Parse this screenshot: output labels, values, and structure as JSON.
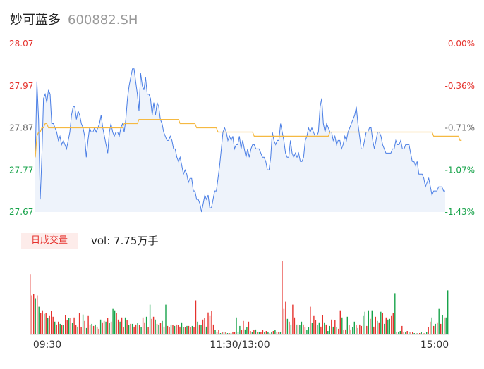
{
  "stock": {
    "name": "妙可蓝多",
    "code": "600882.SH"
  },
  "volume_panel": {
    "tab_label": "日成交量",
    "vol_label": "vol: 7.75万手"
  },
  "colors": {
    "price_line": "#4a7ee5",
    "avg_line": "#f5b942",
    "up": "#e5322d",
    "down": "#17a34a",
    "area": "#eef3fb"
  },
  "chart_data": [
    {
      "type": "line",
      "x_ticks": [
        "09:30",
        "11:30/13:00",
        "15:00"
      ],
      "y_ticks": [
        "28.07",
        "27.97",
        "27.87",
        "27.77",
        "27.67"
      ],
      "y_ticks_right": [
        "-0.00%",
        "-0.36%",
        "-0.71%",
        "-1.07%",
        "-1.43%"
      ],
      "ylim": [
        27.67,
        28.07
      ],
      "series": [
        {
          "values": [
            27.8,
            27.98,
            27.89,
            27.7,
            27.8,
            27.94,
            27.95,
            27.93,
            27.96,
            27.95,
            27.88,
            27.88,
            27.87,
            27.86,
            27.84,
            27.85,
            27.83,
            27.84,
            27.83,
            27.82,
            27.84,
            27.86,
            27.9,
            27.92,
            27.92,
            27.89,
            27.91,
            27.9,
            27.88,
            27.87,
            27.85,
            27.8,
            27.84,
            27.87,
            27.86,
            27.86,
            27.87,
            27.86,
            27.87,
            27.88,
            27.9,
            27.87,
            27.85,
            27.83,
            27.81,
            27.86,
            27.88,
            27.86,
            27.85,
            27.86,
            27.86,
            27.85,
            27.87,
            27.88,
            27.86,
            27.89,
            27.94,
            27.97,
            27.99,
            28.01,
            28.01,
            27.98,
            27.95,
            27.91,
            28.0,
            27.97,
            27.96,
            27.99,
            27.95,
            27.95,
            27.94,
            27.9,
            27.93,
            27.9,
            27.93,
            27.92,
            27.89,
            27.88,
            27.86,
            27.85,
            27.84,
            27.84,
            27.85,
            27.84,
            27.82,
            27.82,
            27.8,
            27.79,
            27.8,
            27.78,
            27.76,
            27.77,
            27.76,
            27.74,
            27.75,
            27.75,
            27.72,
            27.72,
            27.7,
            27.7,
            27.69,
            27.67,
            27.69,
            27.71,
            27.7,
            27.71,
            27.68,
            27.68,
            27.7,
            27.72,
            27.72,
            27.75,
            27.78,
            27.82,
            27.86,
            27.87,
            27.86,
            27.84,
            27.85,
            27.84,
            27.85,
            27.82,
            27.83,
            27.83,
            27.85,
            27.82,
            27.84,
            27.82,
            27.8,
            27.82,
            27.8,
            27.82,
            27.83,
            27.83,
            27.82,
            27.82,
            27.82,
            27.81,
            27.8,
            27.8,
            27.79,
            27.77,
            27.77,
            27.8,
            27.86,
            27.84,
            27.83,
            27.84,
            27.84,
            27.88,
            27.86,
            27.84,
            27.81,
            27.8,
            27.8,
            27.84,
            27.81,
            27.8,
            27.81,
            27.8,
            27.81,
            27.79,
            27.79,
            27.8,
            27.84,
            27.85,
            27.87,
            27.86,
            27.87,
            27.86,
            27.85,
            27.85,
            27.86,
            27.92,
            27.94,
            27.88,
            27.86,
            27.88,
            27.87,
            27.86,
            27.86,
            27.84,
            27.85,
            27.83,
            27.84,
            27.84,
            27.82,
            27.83,
            27.85,
            27.84,
            27.86,
            27.87,
            27.88,
            27.89,
            27.9,
            27.92,
            27.88,
            27.85,
            27.82,
            27.82,
            27.84,
            27.86,
            27.86,
            27.87,
            27.87,
            27.84,
            27.82,
            27.84,
            27.86,
            27.86,
            27.85,
            27.83,
            27.82,
            27.81,
            27.81,
            27.81,
            27.81,
            27.82,
            27.82,
            27.84,
            27.83,
            27.83,
            27.84,
            27.82,
            27.82,
            27.83,
            27.83,
            27.83,
            27.81,
            27.79,
            27.79,
            27.78,
            27.79,
            27.76,
            27.76,
            27.76,
            27.75,
            27.73,
            27.74,
            27.75,
            27.73,
            27.71,
            27.72,
            27.72,
            27.72,
            27.73,
            27.73,
            27.73,
            27.72,
            27.72
          ]
        },
        {
          "values": [
            27.8,
            27.85,
            27.86,
            27.86,
            27.87,
            27.87,
            27.88,
            27.88,
            27.87,
            27.87,
            27.87,
            27.87,
            27.87,
            27.87,
            27.87,
            27.87,
            27.87,
            27.87,
            27.87,
            27.87,
            27.87,
            27.87,
            27.87,
            27.87,
            27.87,
            27.87,
            27.87,
            27.87,
            27.87,
            27.87,
            27.87,
            27.87,
            27.87,
            27.87,
            27.87,
            27.87,
            27.87,
            27.87,
            27.87,
            27.87,
            27.87,
            27.87,
            27.87,
            27.87,
            27.87,
            27.87,
            27.87,
            27.87,
            27.87,
            27.87,
            27.87,
            27.87,
            27.87,
            27.87,
            27.88,
            27.88,
            27.88,
            27.88,
            27.88,
            27.88,
            27.88,
            27.88,
            27.88,
            27.89,
            27.89,
            27.89,
            27.89,
            27.89,
            27.89,
            27.89,
            27.89,
            27.89,
            27.89,
            27.89,
            27.89,
            27.89,
            27.89,
            27.89,
            27.89,
            27.89,
            27.89,
            27.89,
            27.89,
            27.89,
            27.89,
            27.89,
            27.89,
            27.89,
            27.88,
            27.88,
            27.88,
            27.88,
            27.88,
            27.88,
            27.88,
            27.88,
            27.88,
            27.88,
            27.87,
            27.87,
            27.87,
            27.87,
            27.87,
            27.87,
            27.87,
            27.87,
            27.87,
            27.87,
            27.87,
            27.87,
            27.87,
            27.86,
            27.86,
            27.86,
            27.86,
            27.86,
            27.86,
            27.86,
            27.86,
            27.86,
            27.86,
            27.86,
            27.86,
            27.86,
            27.86,
            27.86,
            27.86,
            27.86,
            27.86,
            27.86,
            27.86,
            27.86,
            27.86,
            27.85,
            27.85,
            27.85,
            27.85,
            27.85,
            27.85,
            27.85,
            27.85,
            27.85,
            27.85,
            27.85,
            27.85,
            27.85,
            27.85,
            27.85,
            27.85,
            27.85,
            27.85,
            27.85,
            27.85,
            27.85,
            27.85,
            27.85,
            27.85,
            27.85,
            27.85,
            27.85,
            27.85,
            27.85,
            27.85,
            27.85,
            27.85,
            27.85,
            27.85,
            27.85,
            27.85,
            27.85,
            27.85,
            27.85,
            27.85,
            27.85,
            27.85,
            27.85,
            27.85,
            27.85,
            27.85,
            27.86,
            27.86,
            27.86,
            27.86,
            27.86,
            27.86,
            27.86,
            27.86,
            27.86,
            27.86,
            27.86,
            27.86,
            27.86,
            27.86,
            27.86,
            27.86,
            27.86,
            27.86,
            27.86,
            27.86,
            27.86,
            27.86,
            27.86,
            27.86,
            27.86,
            27.86,
            27.86,
            27.86,
            27.86,
            27.86,
            27.86,
            27.86,
            27.86,
            27.86,
            27.86,
            27.86,
            27.86,
            27.86,
            27.86,
            27.86,
            27.86,
            27.86,
            27.86,
            27.86,
            27.86,
            27.86,
            27.86,
            27.86,
            27.86,
            27.86,
            27.86,
            27.86,
            27.86,
            27.86,
            27.86,
            27.86,
            27.86,
            27.86,
            27.86,
            27.86,
            27.86,
            27.86,
            27.86,
            27.85,
            27.85,
            27.85,
            27.85,
            27.85,
            27.85,
            27.85,
            27.85,
            27.85,
            27.85,
            27.85,
            27.85,
            27.85,
            27.85,
            27.85,
            27.85,
            27.84,
            27.84
          ]
        }
      ]
    },
    {
      "type": "bar",
      "values": [
        85,
        55,
        57,
        51,
        55,
        39,
        30,
        34,
        29,
        30,
        23,
        26,
        33,
        25,
        18,
        14,
        18,
        15,
        13,
        13,
        27,
        20,
        23,
        23,
        16,
        24,
        13,
        11,
        30,
        10,
        28,
        19,
        9,
        26,
        13,
        15,
        12,
        14,
        11,
        8,
        21,
        17,
        19,
        18,
        23,
        16,
        18,
        36,
        34,
        30,
        21,
        18,
        24,
        10,
        24,
        20,
        13,
        15,
        15,
        11,
        14,
        16,
        13,
        10,
        24,
        17,
        25,
        10,
        42,
        22,
        25,
        21,
        15,
        14,
        16,
        19,
        11,
        42,
        12,
        10,
        14,
        13,
        12,
        14,
        13,
        11,
        17,
        10,
        10,
        12,
        12,
        10,
        12,
        10,
        48,
        18,
        14,
        13,
        21,
        23,
        11,
        31,
        26,
        33,
        14,
        6,
        3,
        6,
        2,
        3,
        3,
        3,
        2,
        2,
        2,
        4,
        3,
        24,
        3,
        12,
        6,
        19,
        7,
        10,
        18,
        5,
        4,
        6,
        7,
        3,
        3,
        3,
        6,
        3,
        5,
        3,
        2,
        3,
        5,
        6,
        4,
        3,
        4,
        104,
        36,
        46,
        22,
        18,
        14,
        42,
        24,
        14,
        14,
        13,
        18,
        14,
        10,
        6,
        10,
        39,
        16,
        26,
        20,
        13,
        17,
        11,
        27,
        17,
        14,
        5,
        12,
        21,
        11,
        20,
        10,
        8,
        34,
        24,
        6,
        7,
        25,
        13,
        7,
        10,
        18,
        13,
        9,
        14,
        12,
        26,
        32,
        12,
        34,
        22,
        34,
        11,
        25,
        19,
        17,
        32,
        30,
        15,
        24,
        21,
        22,
        26,
        30,
        58,
        4,
        3,
        5,
        12,
        3,
        3,
        5,
        3,
        3,
        3,
        2,
        2,
        2,
        2,
        3,
        2,
        2,
        3,
        10,
        18,
        24,
        12,
        15,
        17,
        36,
        15,
        27,
        24,
        24,
        62
      ],
      "up": [
        1,
        1,
        1,
        0,
        1,
        0,
        1,
        1,
        0,
        1,
        0,
        1,
        1,
        1,
        0,
        1,
        1,
        0,
        1,
        0,
        1,
        1,
        0,
        1,
        0,
        1,
        1,
        0,
        1,
        1,
        0,
        1,
        0,
        1,
        1,
        0,
        1,
        0,
        1,
        1,
        0,
        1,
        1,
        0,
        1,
        0,
        1,
        0,
        0,
        1,
        1,
        0,
        1,
        1,
        0,
        1,
        0,
        1,
        0,
        1,
        1,
        0,
        1,
        0,
        1,
        1,
        0,
        1,
        0,
        1,
        1,
        0,
        1,
        0,
        1,
        0,
        1,
        0,
        1,
        1,
        0,
        1,
        0,
        1,
        1,
        1,
        0,
        0,
        1,
        0,
        1,
        1,
        0,
        1,
        1,
        0,
        1,
        0,
        1,
        1,
        0,
        1,
        1,
        1,
        1,
        0,
        1,
        1,
        0,
        1,
        0,
        1,
        0,
        1,
        0,
        1,
        1,
        0,
        0,
        0,
        1,
        1,
        0,
        0,
        1,
        1,
        0,
        1,
        0,
        1,
        0,
        1,
        1,
        0,
        1,
        0,
        1,
        0,
        1,
        0,
        1,
        1,
        0,
        1,
        1,
        1,
        0,
        1,
        0,
        1,
        1,
        0,
        1,
        0,
        0,
        1,
        1,
        0,
        0,
        1,
        0,
        1,
        1,
        0,
        0,
        1,
        1,
        0,
        1,
        0,
        0,
        1,
        0,
        1,
        0,
        1,
        1,
        0,
        1,
        1,
        0,
        1,
        1,
        0,
        0,
        1,
        0,
        1,
        1,
        0,
        0,
        1,
        0,
        1,
        0,
        1,
        1,
        0,
        1,
        0,
        1,
        0,
        1,
        0,
        0,
        1,
        1,
        0,
        1,
        0,
        0,
        1,
        1,
        0,
        1,
        0,
        1,
        1,
        0,
        1,
        0,
        1,
        0,
        1,
        1,
        0,
        1,
        1,
        0,
        1,
        0,
        1,
        0,
        1,
        0,
        1,
        0,
        0
      ]
    }
  ]
}
